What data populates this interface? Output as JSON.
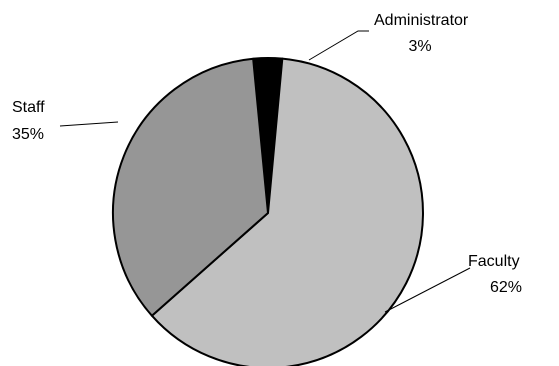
{
  "chart_data": {
    "type": "pie",
    "title": "",
    "slices": [
      {
        "label": "Administrator",
        "percent_label": "3%",
        "value": 3,
        "color": "#000000"
      },
      {
        "label": "Faculty",
        "percent_label": "62%",
        "value": 62,
        "color": "#c0c0c0"
      },
      {
        "label": "Staff",
        "percent_label": "35%",
        "value": 35,
        "color": "#969696"
      }
    ],
    "outline_color": "#000000",
    "legend": "none"
  }
}
